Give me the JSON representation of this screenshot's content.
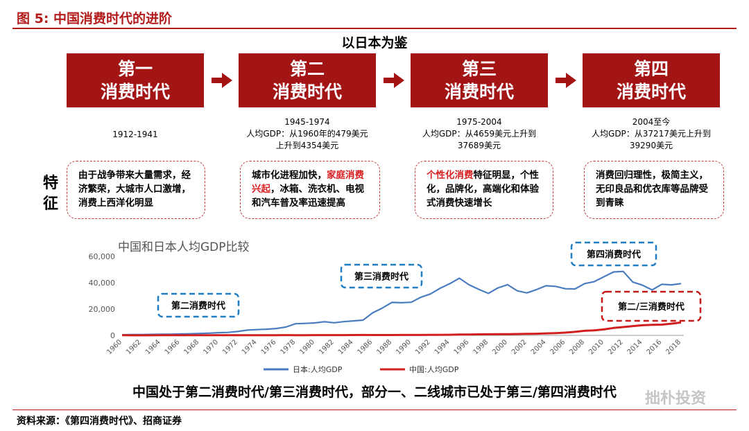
{
  "figure": {
    "title": "图 5:  中国消费时代的进阶",
    "subject": "以日本为鉴"
  },
  "eras": [
    {
      "line1": "第一",
      "line2": "消费时代",
      "info": [
        "1912-1941"
      ]
    },
    {
      "line1": "第二",
      "line2": "消费时代",
      "info": [
        "1945-1974",
        "人均GDP：从1960年的479美元",
        "上升到4354美元"
      ]
    },
    {
      "line1": "第三",
      "line2": "消费时代",
      "info": [
        "1975-2004",
        "人均GDP：从4659美元上升到",
        "37689美元"
      ]
    },
    {
      "line1": "第四",
      "line2": "消费时代",
      "info": [
        "2004至今",
        "人均GDP：从37217美元上升到",
        "39290美元"
      ]
    }
  ],
  "features_label": [
    "特",
    "征"
  ],
  "features": [
    {
      "text": "由于战争带来大量需求，经济繁荣，大城市人口激增，消费上西洋化明显"
    },
    {
      "pre": "城市化进程加快，",
      "highlight": "家庭消费兴起",
      "post": "，冰箱、洗衣机、电视和汽车普及率迅速提高"
    },
    {
      "pre": "",
      "highlight": "个性化消费",
      "post": "特征明显，个性化，品牌化，高端化和体验式消费快速增长"
    },
    {
      "text": "消费回归理性，极简主义，无印良品和优衣库等品牌受到青睐"
    }
  ],
  "colors": {
    "brand": "#a31515",
    "japan_line": "#4a7cc0",
    "china_line": "#d11f1f",
    "callout_blue": "#1f7dc4",
    "callout_red": "#c41818"
  },
  "chart_data": {
    "type": "line",
    "title": "中国和日本人均GDP比较",
    "xlabel": "",
    "ylabel": "",
    "ylim": [
      0,
      60000
    ],
    "yticks": [
      "0",
      "20,000",
      "40,000",
      "60,000"
    ],
    "xticks": [
      "1960",
      "1962",
      "1964",
      "1966",
      "1968",
      "1970",
      "1972",
      "1974",
      "1976",
      "1978",
      "1980",
      "1982",
      "1984",
      "1986",
      "1988",
      "1990",
      "1992",
      "1994",
      "1996",
      "1998",
      "2000",
      "2002",
      "2004",
      "2006",
      "2008",
      "2010",
      "2012",
      "2014",
      "2016",
      "2018"
    ],
    "x": [
      1960,
      1961,
      1962,
      1963,
      1964,
      1965,
      1966,
      1967,
      1968,
      1969,
      1970,
      1971,
      1972,
      1973,
      1974,
      1975,
      1976,
      1977,
      1978,
      1979,
      1980,
      1981,
      1982,
      1983,
      1984,
      1985,
      1986,
      1987,
      1988,
      1989,
      1990,
      1991,
      1992,
      1993,
      1994,
      1995,
      1996,
      1997,
      1998,
      1999,
      2000,
      2001,
      2002,
      2003,
      2004,
      2005,
      2006,
      2007,
      2008,
      2009,
      2010,
      2011,
      2012,
      2013,
      2014,
      2015,
      2016,
      2017,
      2018
    ],
    "series": [
      {
        "name": "日本:人均GDP",
        "color": "#4a7cc0",
        "values": [
          479,
          564,
          633,
          718,
          835,
          920,
          1058,
          1229,
          1451,
          1669,
          2037,
          2272,
          2967,
          3997,
          4354,
          4659,
          5198,
          6335,
          8821,
          9105,
          9463,
          10361,
          9578,
          10425,
          10985,
          11584,
          17112,
          20745,
          25051,
          24813,
          25140,
          28925,
          31464,
          35766,
          39269,
          43440,
          38437,
          35022,
          31903,
          36027,
          38532,
          33846,
          32289,
          34808,
          37689,
          37218,
          35434,
          35275,
          39339,
          40855,
          44508,
          48168,
          48603,
          40454,
          38109,
          34524,
          38794,
          38387,
          39290
        ]
      },
      {
        "name": "中国:人均GDP",
        "color": "#d11f1f",
        "values": [
          90,
          76,
          70,
          74,
          85,
          98,
          104,
          97,
          91,
          100,
          113,
          119,
          132,
          157,
          160,
          178,
          165,
          185,
          156,
          184,
          195,
          197,
          203,
          225,
          251,
          294,
          282,
          252,
          283,
          310,
          318,
          333,
          366,
          377,
          473,
          610,
          709,
          781,
          828,
          873,
          959,
          1053,
          1148,
          1288,
          1508,
          1753,
          2099,
          2694,
          3468,
          3832,
          4550,
          5618,
          6317,
          7051,
          7679,
          8067,
          8148,
          8879,
          9771
        ]
      }
    ],
    "annotations": [
      {
        "text": "第二消费时代",
        "color": "blue"
      },
      {
        "text": "第三消费时代",
        "color": "blue"
      },
      {
        "text": "第四消费时代",
        "color": "blue"
      },
      {
        "text": "第二/三消费时代",
        "color": "red"
      }
    ]
  },
  "bottom_text": "中国处于第二消费时代/第三消费时代，部分一、二线城市已处于第三/第四消费时代",
  "source": "资料来源：《第四消费时代》、招商证券",
  "watermark": "拙朴投资"
}
